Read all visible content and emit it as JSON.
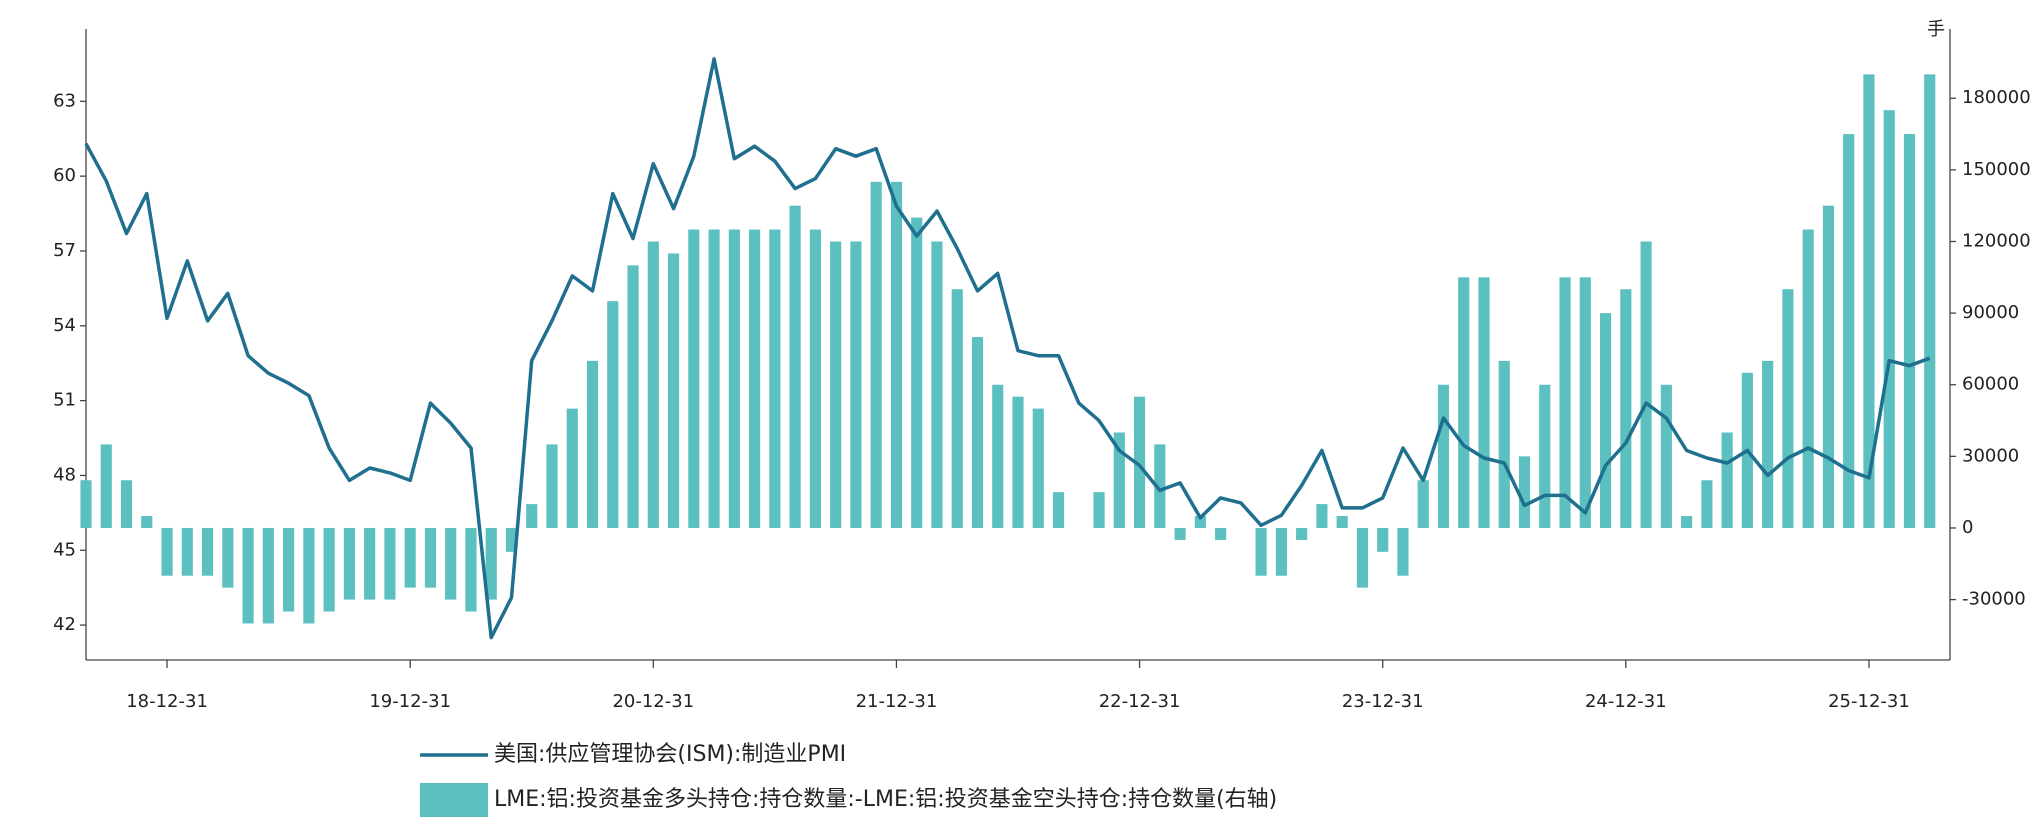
{
  "chart_data": {
    "type": "combo",
    "y2label": "手",
    "categories": [
      null,
      null,
      null,
      null,
      "18-12-31",
      null,
      null,
      null,
      null,
      null,
      null,
      null,
      null,
      null,
      null,
      null,
      "19-12-31",
      null,
      null,
      null,
      null,
      null,
      null,
      null,
      null,
      null,
      null,
      null,
      "20-12-31",
      null,
      null,
      null,
      null,
      null,
      null,
      null,
      null,
      null,
      null,
      null,
      "21-12-31",
      null,
      null,
      null,
      null,
      null,
      null,
      null,
      null,
      null,
      null,
      null,
      "22-12-31",
      null,
      null,
      null,
      null,
      null,
      null,
      null,
      null,
      null,
      null,
      null,
      "23-12-31",
      null,
      null,
      null,
      null,
      null,
      null,
      null,
      null,
      null,
      null,
      null,
      "24-12-31",
      null,
      null,
      null,
      null,
      null,
      null,
      null,
      null,
      null,
      null,
      null,
      "25-12-31",
      null,
      null,
      null
    ],
    "series": [
      {
        "name": "LME:铝:投资基金多头持仓:持仓数量:-LME:铝:投资基金空头持仓:持仓数量(右轴)",
        "type": "bar",
        "axis": "y2",
        "color": "#5cc0c0",
        "values": [
          20000,
          35000,
          20000,
          5000,
          -20000,
          -20000,
          -20000,
          -25000,
          -40000,
          -40000,
          -35000,
          -40000,
          -35000,
          -30000,
          -30000,
          -30000,
          -25000,
          -25000,
          -30000,
          -35000,
          -30000,
          -10000,
          10000,
          35000,
          50000,
          70000,
          95000,
          110000,
          120000,
          115000,
          125000,
          125000,
          125000,
          125000,
          125000,
          135000,
          125000,
          120000,
          120000,
          145000,
          145000,
          130000,
          120000,
          100000,
          80000,
          60000,
          55000,
          50000,
          15000,
          0,
          15000,
          40000,
          55000,
          35000,
          -5000,
          5000,
          -5000,
          0,
          -20000,
          -20000,
          -5000,
          10000,
          5000,
          -25000,
          -10000,
          -20000,
          20000,
          60000,
          105000,
          105000,
          70000,
          30000,
          60000,
          105000,
          105000,
          90000,
          100000,
          120000,
          60000,
          5000,
          20000,
          40000,
          65000,
          70000,
          100000,
          125000,
          135000,
          165000,
          190000,
          175000,
          165000,
          190000
        ]
      },
      {
        "name": "美国:供应管理协会(ISM):制造业PMI",
        "type": "line",
        "axis": "y",
        "color": "#1f6f8f",
        "values": [
          61.3,
          59.8,
          57.7,
          59.3,
          54.3,
          56.6,
          54.2,
          55.3,
          52.8,
          52.1,
          51.7,
          51.2,
          49.1,
          47.8,
          48.3,
          48.1,
          47.8,
          50.9,
          50.1,
          49.1,
          41.5,
          43.1,
          52.6,
          54.2,
          56.0,
          55.4,
          59.3,
          57.5,
          60.5,
          58.7,
          60.8,
          64.7,
          60.7,
          61.2,
          60.6,
          59.5,
          59.9,
          61.1,
          60.8,
          61.1,
          58.8,
          57.6,
          58.6,
          57.1,
          55.4,
          56.1,
          53.0,
          52.8,
          52.8,
          50.9,
          50.2,
          49.0,
          48.4,
          47.4,
          47.7,
          46.3,
          47.1,
          46.9,
          46.0,
          46.4,
          47.6,
          49.0,
          46.7,
          46.7,
          47.1,
          49.1,
          47.8,
          50.3,
          49.2,
          48.7,
          48.5,
          46.8,
          47.2,
          47.2,
          46.5,
          48.4,
          49.3,
          50.9,
          50.3,
          49.0,
          48.7,
          48.5,
          49.0,
          48.0,
          48.7,
          49.1,
          48.7,
          48.2,
          47.9,
          52.6,
          52.4,
          52.7
        ]
      }
    ],
    "ylim": [
      40.6,
      65.9
    ],
    "yticks": [
      42,
      45,
      48,
      51,
      54,
      57,
      60,
      63
    ],
    "y2lim": [
      -55300,
      209000
    ],
    "y2ticks": [
      -30000,
      0,
      30000,
      60000,
      90000,
      120000,
      150000,
      180000
    ],
    "grid": false
  }
}
